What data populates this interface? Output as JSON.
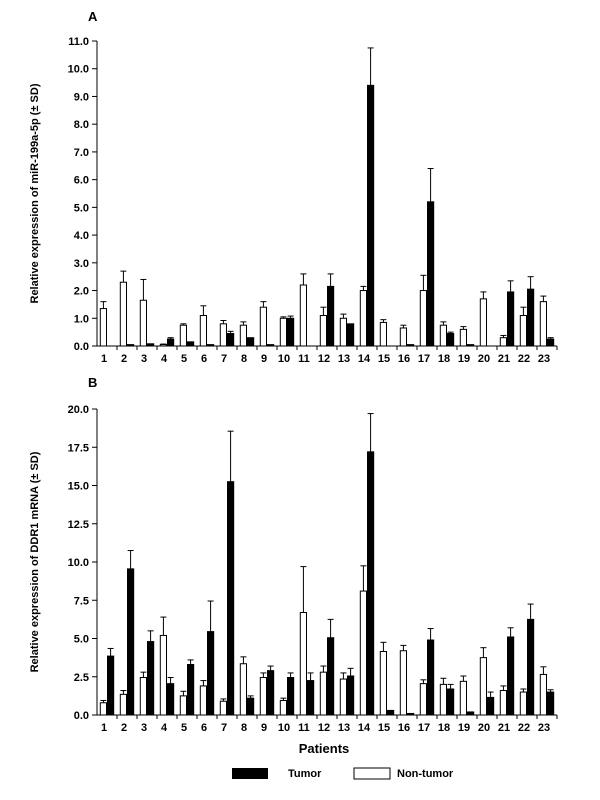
{
  "colors": {
    "tumor": "#000000",
    "non_tumor": "#ffffff",
    "axis": "#000000"
  },
  "legend": {
    "tumor_label": "Tumor",
    "non_tumor_label": "Non-tumor"
  },
  "xlabel": "Patients",
  "chart_data": [
    {
      "panel": "A",
      "type": "bar",
      "ylabel": "Relative expression of miR-199a-5p  (± SD)",
      "ylim": [
        0,
        11
      ],
      "yticks": [
        0,
        1,
        2,
        3,
        4,
        5,
        6,
        7,
        8,
        9,
        10,
        11
      ],
      "ytick_labels": [
        "0.0",
        "1.0",
        "2.0",
        "3.0",
        "4.0",
        "5.0",
        "6.0",
        "7.0",
        "8.0",
        "9.0",
        "10.0",
        "11.0"
      ],
      "categories": [
        "1",
        "2",
        "3",
        "4",
        "5",
        "6",
        "7",
        "8",
        "9",
        "10",
        "11",
        "12",
        "13",
        "14",
        "15",
        "16",
        "17",
        "18",
        "19",
        "20",
        "21",
        "22",
        "23"
      ],
      "series": [
        {
          "name": "Non-tumor",
          "values": [
            1.35,
            2.3,
            1.65,
            0.05,
            0.75,
            1.1,
            0.8,
            0.75,
            1.4,
            1.0,
            2.2,
            1.1,
            1.0,
            2.0,
            0.85,
            0.65,
            2.0,
            0.75,
            0.6,
            1.7,
            0.3,
            1.1,
            1.6
          ],
          "errors": [
            0.25,
            0.4,
            0.75,
            0.02,
            0.05,
            0.35,
            0.12,
            0.12,
            0.2,
            0.05,
            0.4,
            0.3,
            0.15,
            0.15,
            0.1,
            0.1,
            0.55,
            0.12,
            0.1,
            0.25,
            0.08,
            0.3,
            0.2
          ]
        },
        {
          "name": "Tumor",
          "values": [
            0.0,
            0.05,
            0.08,
            0.25,
            0.15,
            0.05,
            0.45,
            0.3,
            0.05,
            1.0,
            0.0,
            2.15,
            0.8,
            9.4,
            0.0,
            0.05,
            5.2,
            0.45,
            0.05,
            0.0,
            1.95,
            2.05,
            0.25
          ],
          "errors": [
            0.0,
            0.0,
            0.0,
            0.05,
            0.0,
            0.0,
            0.08,
            0.0,
            0.0,
            0.08,
            0.0,
            0.45,
            0.0,
            1.35,
            0.0,
            0.0,
            1.2,
            0.05,
            0.0,
            0.0,
            0.4,
            0.45,
            0.05
          ]
        }
      ]
    },
    {
      "panel": "B",
      "type": "bar",
      "ylabel": "Relative expression of DDR1 mRNA (± SD)",
      "ylim": [
        0,
        20
      ],
      "yticks": [
        0,
        2.5,
        5,
        7.5,
        10,
        12.5,
        15,
        17.5,
        20
      ],
      "ytick_labels": [
        "0.0",
        "2.5",
        "5.0",
        "7.5",
        "10.0",
        "12.5",
        "15.0",
        "17.5",
        "20.0"
      ],
      "categories": [
        "1",
        "2",
        "3",
        "4",
        "5",
        "6",
        "7",
        "8",
        "9",
        "10",
        "11",
        "12",
        "13",
        "14",
        "15",
        "16",
        "17",
        "18",
        "19",
        "20",
        "21",
        "22",
        "23"
      ],
      "series": [
        {
          "name": "Non-tumor",
          "values": [
            0.8,
            1.35,
            2.45,
            5.2,
            1.25,
            1.9,
            0.9,
            3.35,
            2.45,
            0.95,
            6.7,
            2.8,
            2.35,
            8.1,
            4.15,
            4.2,
            2.05,
            2.0,
            2.2,
            3.75,
            1.6,
            1.5,
            2.65
          ],
          "errors": [
            0.15,
            0.25,
            0.35,
            1.2,
            0.3,
            0.35,
            0.15,
            0.45,
            0.3,
            0.15,
            3.0,
            0.4,
            0.4,
            1.65,
            0.6,
            0.35,
            0.25,
            0.4,
            0.35,
            0.65,
            0.3,
            0.2,
            0.5
          ]
        },
        {
          "name": "Tumor",
          "values": [
            3.85,
            9.55,
            4.8,
            2.05,
            3.3,
            5.45,
            15.25,
            1.1,
            2.9,
            2.45,
            2.25,
            5.05,
            2.55,
            17.2,
            0.3,
            0.1,
            4.9,
            1.7,
            0.2,
            1.15,
            5.1,
            6.25,
            1.5
          ],
          "errors": [
            0.5,
            1.2,
            0.7,
            0.4,
            0.3,
            2.0,
            3.3,
            0.15,
            0.3,
            0.3,
            0.5,
            1.2,
            0.5,
            2.5,
            0.0,
            0.0,
            0.75,
            0.3,
            0.0,
            0.35,
            0.6,
            1.0,
            0.15
          ]
        }
      ]
    }
  ]
}
